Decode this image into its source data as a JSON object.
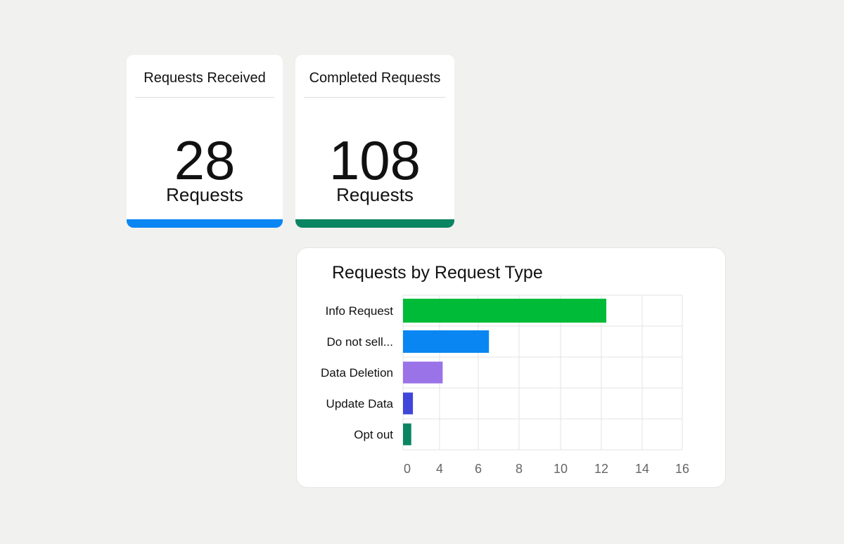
{
  "stats": {
    "received": {
      "title": "Requests Received",
      "value": "28",
      "unit": "Requests",
      "bar_color": "#0a86f3"
    },
    "completed": {
      "title": "Completed Requests",
      "value": "108",
      "unit": "Requests",
      "bar_color": "#0a8561"
    }
  },
  "chart_data": {
    "type": "bar",
    "orientation": "horizontal",
    "title": "Requests by Request Type",
    "categories": [
      "Info Request",
      "Do not sell...",
      "Data Deletion",
      "Update Data",
      "Opt out"
    ],
    "values": [
      12.3,
      5.2,
      2.4,
      0.6,
      0.5
    ],
    "colors": [
      "#00bb38",
      "#0a86f3",
      "#9b73e8",
      "#3f46d9",
      "#0a8561"
    ],
    "xlim": [
      0,
      16
    ],
    "xticks": [
      "0",
      "4",
      "6",
      "8",
      "10",
      "12",
      "14",
      "16"
    ],
    "grid": true
  }
}
